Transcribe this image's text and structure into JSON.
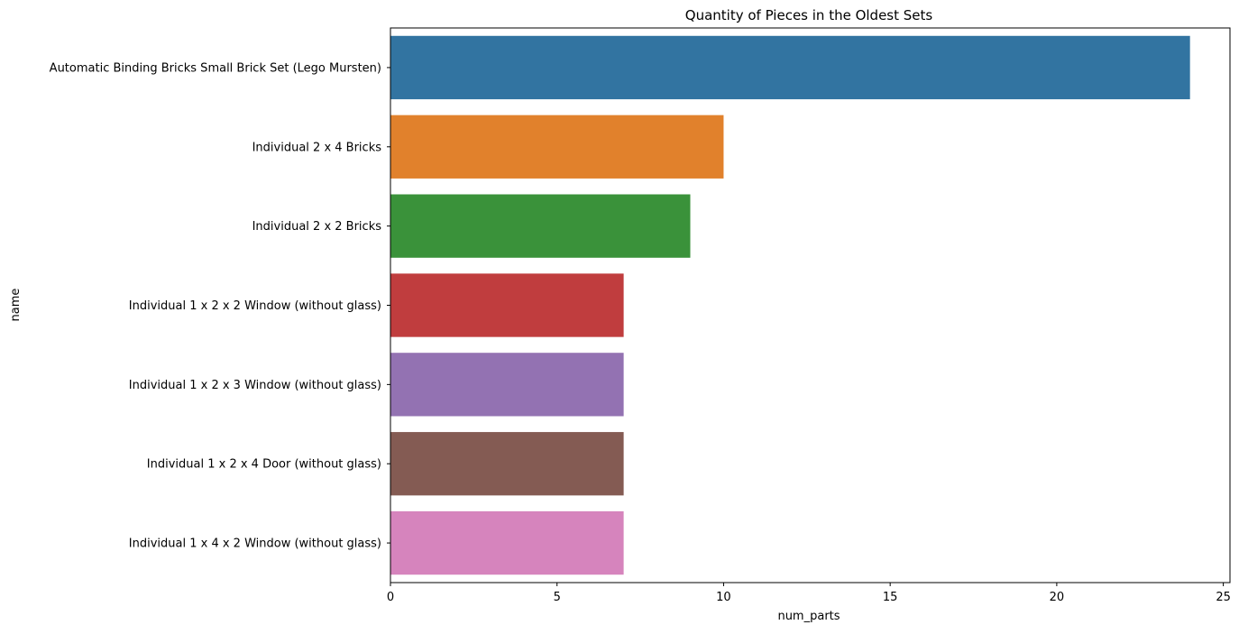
{
  "chart_data": {
    "type": "bar",
    "orientation": "horizontal",
    "title": "Quantity of Pieces in the Oldest Sets",
    "xlabel": "num_parts",
    "ylabel": "name",
    "categories": [
      "Automatic Binding Bricks Small Brick Set (Lego Mursten)",
      "Individual 2 x 4 Bricks",
      "Individual 2 x 2 Bricks",
      "Individual 1 x 2 x 2 Window (without glass)",
      "Individual 1 x 2 x 3 Window (without glass)",
      "Individual 1 x 2 x 4 Door (without glass)",
      "Individual 1 x 4 x 2 Window (without glass)"
    ],
    "values": [
      24,
      10,
      9,
      7,
      7,
      7,
      7
    ],
    "colors": [
      "#3274a1",
      "#e1812c",
      "#3a923a",
      "#c03d3e",
      "#9372b2",
      "#845b53",
      "#d684bd"
    ],
    "xlim": [
      0,
      25.2
    ],
    "xticks": [
      0,
      5,
      10,
      15,
      20,
      25
    ],
    "xtick_labels": [
      "0",
      "5",
      "10",
      "15",
      "20",
      "25"
    ],
    "grid": false,
    "legend": "none"
  }
}
